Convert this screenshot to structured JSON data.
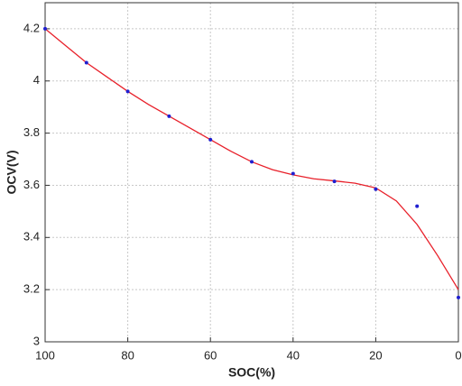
{
  "chart_data": {
    "type": "scatter",
    "x_label": "SOC(%)",
    "y_label": "OCV(V)",
    "xlim": [
      100,
      0
    ],
    "xticks": [
      100,
      80,
      60,
      40,
      20,
      0
    ],
    "ylim": [
      3,
      4.3
    ],
    "yticks": [
      3,
      3.2,
      3.4,
      3.6,
      3.8,
      4,
      4.2
    ],
    "grid": true,
    "series": [
      {
        "style": "line",
        "color": "#e8202a",
        "x": [
          100,
          95,
          90,
          85,
          80,
          75,
          70,
          65,
          60,
          55,
          50,
          45,
          40,
          35,
          30,
          25,
          20,
          15,
          10,
          5,
          0
        ],
        "values": [
          4.2,
          4.135,
          4.07,
          4.015,
          3.96,
          3.91,
          3.865,
          3.82,
          3.775,
          3.73,
          3.69,
          3.66,
          3.64,
          3.625,
          3.617,
          3.608,
          3.59,
          3.54,
          3.45,
          3.33,
          3.2
        ]
      },
      {
        "style": "points",
        "color": "#1f1fd0",
        "x": [
          100,
          90,
          80,
          70,
          60,
          50,
          40,
          30,
          20,
          10,
          0
        ],
        "values": [
          4.2,
          4.07,
          3.96,
          3.865,
          3.775,
          3.69,
          3.645,
          3.615,
          3.585,
          3.52,
          3.17
        ]
      }
    ]
  }
}
